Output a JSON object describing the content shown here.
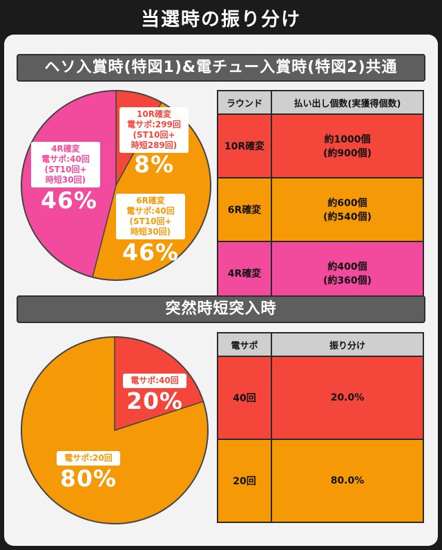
{
  "page_title": "当選時の振り分け",
  "section1": {
    "title": "ヘソ入賞時(特図1)&電チュー入賞時(特図2)共通",
    "table": {
      "headers": [
        "ラウンド",
        "払い出し個数(実獲得個数)"
      ],
      "rows": [
        {
          "round": "10R確変",
          "payout": "約1000個",
          "actual": "(約900個)",
          "color": "#f5463b"
        },
        {
          "round": "6R確変",
          "payout": "約600個",
          "actual": "(約540個)",
          "color": "#f59a06"
        },
        {
          "round": "4R確変",
          "payout": "約400個",
          "actual": "(約360個)",
          "color": "#f24b9e"
        }
      ]
    }
  },
  "section2": {
    "title": "突然時短突入時",
    "table": {
      "headers": [
        "電サポ",
        "振り分け"
      ],
      "rows": [
        {
          "label": "40回",
          "value": "20.0%",
          "color": "#f5463b"
        },
        {
          "label": "20回",
          "value": "80.0%",
          "color": "#f59a06"
        }
      ]
    }
  },
  "chart_data": [
    {
      "type": "pie",
      "slices": [
        {
          "label": "10R確変",
          "detail": [
            "電サポ:299回",
            "(ST10回+",
            "時短289回)"
          ],
          "value": 8,
          "display": "8%",
          "color": "#f5463b"
        },
        {
          "label": "6R確変",
          "detail": [
            "電サポ:40回",
            "(ST10回+",
            "時短30回)"
          ],
          "value": 46,
          "display": "46%",
          "color": "#f59a06"
        },
        {
          "label": "4R確変",
          "detail": [
            "電サポ:40回",
            "(ST10回+",
            "時短30回)"
          ],
          "value": 46,
          "display": "46%",
          "color": "#f24b9e"
        }
      ]
    },
    {
      "type": "pie",
      "slices": [
        {
          "label": "電サポ:40回",
          "value": 20,
          "display": "20%",
          "color": "#f5463b"
        },
        {
          "label": "電サポ:20回",
          "value": 80,
          "display": "80%",
          "color": "#f59a06"
        }
      ]
    }
  ]
}
